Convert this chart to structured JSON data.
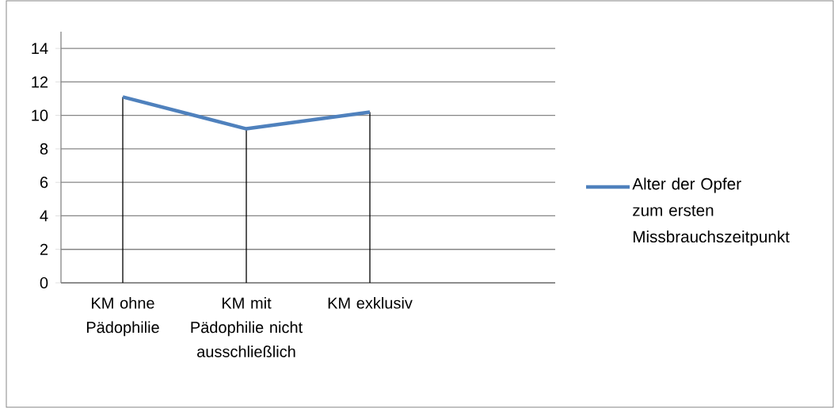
{
  "chart_data": {
    "type": "line",
    "categories": [
      "KM ohne Pädophilie",
      "KM mit Pädophilie nicht ausschließlich",
      "KM exklusiv",
      null
    ],
    "series": [
      {
        "name": "Alter der Opfer zum ersten Missbrauchszeitpunkt",
        "color": "#4f81bd",
        "values": [
          11.1,
          9.2,
          10.2,
          null
        ],
        "errors": [
          [
            0,
            11.1
          ],
          [
            0,
            9.2
          ],
          [
            0,
            10.2
          ],
          null
        ]
      }
    ],
    "ylim": [
      0,
      15
    ],
    "yticks": [
      0,
      2,
      4,
      6,
      8,
      10,
      12,
      14
    ],
    "grid": "y",
    "legend": "right",
    "marker": "none",
    "line_style": "solid"
  }
}
